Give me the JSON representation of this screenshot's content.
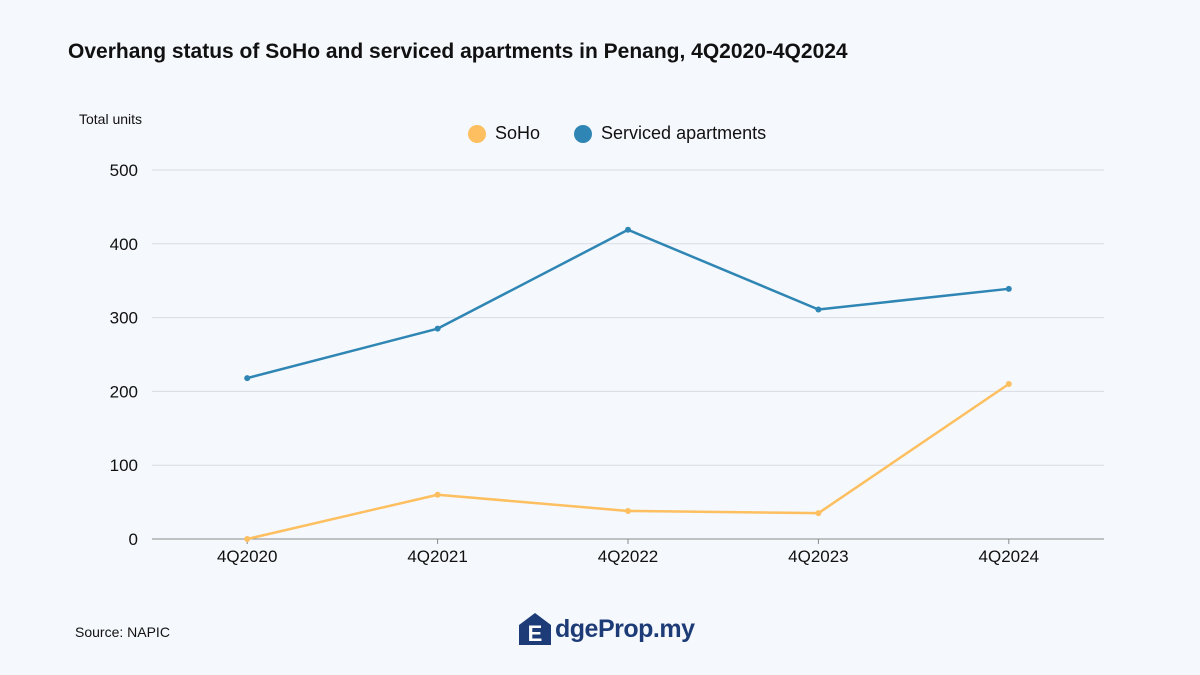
{
  "title": "Overhang status of SoHo and serviced apartments in Penang, 4Q2020-4Q2024",
  "source": "Source: NAPIC",
  "logo": {
    "mark": "E",
    "text": "dgeProp.my"
  },
  "colors": {
    "soho": "#fdbf5f",
    "serviced": "#2f86b4",
    "grid": "#d9dde3",
    "axis": "#8a8a8a"
  },
  "chart_data": {
    "type": "line",
    "ylabel": "Total units",
    "xlabel": "",
    "categories": [
      "4Q2020",
      "4Q2021",
      "4Q2022",
      "4Q2023",
      "4Q2024"
    ],
    "ylim": [
      0,
      500
    ],
    "yticks": [
      0,
      100,
      200,
      300,
      400,
      500
    ],
    "grid": true,
    "legend_position": "top-center",
    "series": [
      {
        "name": "SoHo",
        "color": "#fdbf5f",
        "values": [
          0,
          60,
          38,
          35,
          210
        ]
      },
      {
        "name": "Serviced apartments",
        "color": "#2f86b4",
        "values": [
          218,
          285,
          419,
          311,
          339
        ]
      }
    ]
  }
}
